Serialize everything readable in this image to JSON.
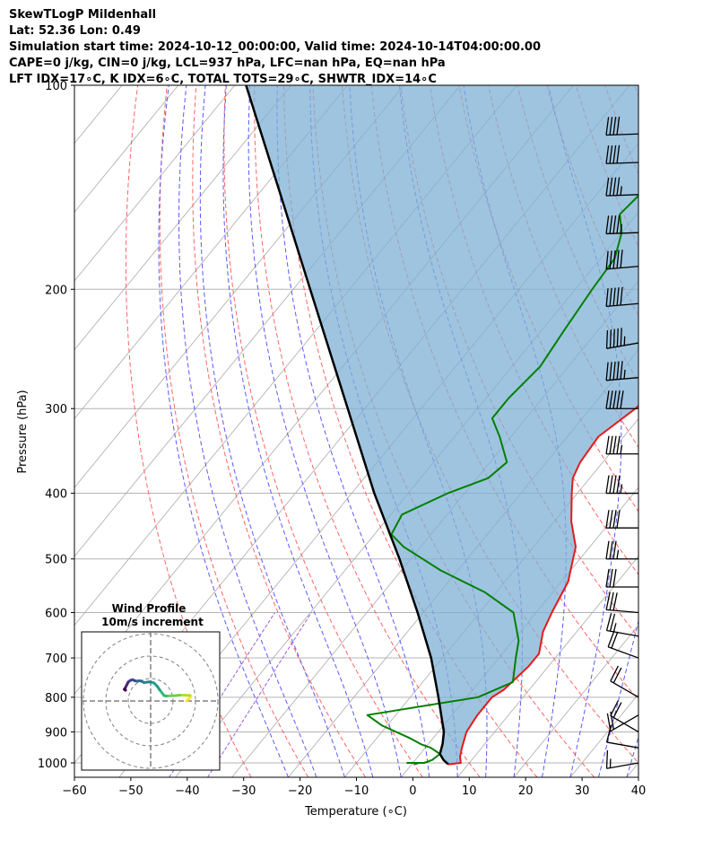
{
  "header": {
    "line1": "SkewTLogP Mildenhall",
    "line2": "Lat: 52.36   Lon: 0.49",
    "line3": "Simulation start time: 2024-10-12_00:00:00, Valid time: 2024-10-14T04:00:00.00",
    "line4": "CAPE=0 j/kg, CIN=0 j/kg, LCL=937 hPa, LFC=nan hPa, EQ=nan hPa",
    "line5": "LFT IDX=17∘C, K IDX=6∘C, TOTAL TOTS=29∘C, SHWTR_IDX=14∘C"
  },
  "chart_data": {
    "type": "skewt",
    "xlabel": "Temperature (∘C)",
    "ylabel": "Pressure (hPa)",
    "xlim": [
      -60,
      40
    ],
    "plim": [
      1050,
      100
    ],
    "x_ticks": [
      -60,
      -50,
      -40,
      -30,
      -20,
      -10,
      0,
      10,
      20,
      30,
      40
    ],
    "x_tick_labels": [
      "−60",
      "−50",
      "−40",
      "−30",
      "−20",
      "−10",
      "0",
      "10",
      "20",
      "30",
      "40"
    ],
    "p_ticks": [
      100,
      200,
      300,
      400,
      500,
      600,
      700,
      800,
      900,
      1000
    ],
    "p_tick_labels": [
      "100",
      "200",
      "300",
      "400",
      "500",
      "600",
      "700",
      "800",
      "900",
      "1000"
    ],
    "series": [
      {
        "name": "temperature",
        "color": "#e31a1c",
        "points": [
          [
            1005,
            6.5
          ],
          [
            1000,
            8.5
          ],
          [
            980,
            7.5
          ],
          [
            950,
            6.5
          ],
          [
            900,
            5
          ],
          [
            850,
            4.5
          ],
          [
            800,
            4.5
          ],
          [
            780,
            5.5
          ],
          [
            720,
            6.5
          ],
          [
            690,
            6.5
          ],
          [
            640,
            4
          ],
          [
            600,
            2.8
          ],
          [
            540,
            1.2
          ],
          [
            480,
            -2.5
          ],
          [
            440,
            -7
          ],
          [
            400,
            -11
          ],
          [
            380,
            -13
          ],
          [
            360,
            -14
          ],
          [
            330,
            -14.5
          ],
          [
            300,
            -12
          ],
          [
            265,
            -10
          ],
          [
            230,
            -10
          ],
          [
            200,
            -9
          ],
          [
            175,
            -8
          ],
          [
            150,
            -6
          ],
          [
            130,
            -5
          ],
          [
            115,
            -3.5
          ],
          [
            100,
            -3.5
          ]
        ]
      },
      {
        "name": "dewpoint",
        "color": "#008000",
        "points": [
          [
            1005,
            0.5
          ],
          [
            1000,
            1
          ],
          [
            1000,
            -1
          ],
          [
            1000,
            2
          ],
          [
            990,
            3
          ],
          [
            970,
            3.5
          ],
          [
            950,
            1
          ],
          [
            940,
            -1
          ],
          [
            920,
            -4
          ],
          [
            880,
            -11
          ],
          [
            850,
            -15
          ],
          [
            800,
            2
          ],
          [
            760,
            6
          ],
          [
            700,
            3
          ],
          [
            660,
            1
          ],
          [
            600,
            -4
          ],
          [
            560,
            -12
          ],
          [
            520,
            -23
          ],
          [
            480,
            -33
          ],
          [
            460,
            -37
          ],
          [
            430,
            -38
          ],
          [
            400,
            -33
          ],
          [
            380,
            -28
          ],
          [
            360,
            -27
          ],
          [
            330,
            -32
          ],
          [
            310,
            -36
          ],
          [
            290,
            -36
          ],
          [
            260,
            -35
          ],
          [
            230,
            -36
          ],
          [
            200,
            -37
          ],
          [
            180,
            -37.5
          ],
          [
            165,
            -40
          ],
          [
            155,
            -43
          ],
          [
            140,
            -42
          ],
          [
            125,
            -36
          ],
          [
            110,
            -30
          ],
          [
            100,
            -26
          ]
        ]
      },
      {
        "name": "parcel",
        "color": "#000000",
        "points": [
          [
            1005,
            6.5
          ],
          [
            990,
            5
          ],
          [
            970,
            3.5
          ],
          [
            937,
            2.5
          ],
          [
            900,
            1
          ],
          [
            800,
            -5
          ],
          [
            700,
            -12
          ],
          [
            600,
            -21
          ],
          [
            500,
            -32
          ],
          [
            400,
            -46
          ],
          [
            300,
            -63
          ],
          [
            200,
            -87
          ],
          [
            150,
            -104
          ],
          [
            100,
            -128
          ]
        ]
      }
    ],
    "cape_cin_fill": {
      "color": "#7fb0d4",
      "between": [
        "temperature",
        "parcel"
      ]
    },
    "background": {
      "isotherm_color": "#aaaaaa",
      "dry_adiabat_color": "#ff6464",
      "moist_adiabat_color": "#5a5aff",
      "mixing_ratio_color": "#9f5fd0",
      "isobar_color": "#b4b4b4"
    },
    "wind_barbs": [
      {
        "p": 1000,
        "speed_kt": 15,
        "dir": 280
      },
      {
        "p": 950,
        "speed_kt": 10,
        "dir": 260
      },
      {
        "p": 900,
        "speed_kt": 20,
        "dir": 240
      },
      {
        "p": 850,
        "speed_kt": 20,
        "dir": 300
      },
      {
        "p": 800,
        "speed_kt": 20,
        "dir": 240
      },
      {
        "p": 700,
        "speed_kt": 20,
        "dir": 250
      },
      {
        "p": 650,
        "speed_kt": 25,
        "dir": 260
      },
      {
        "p": 600,
        "speed_kt": 30,
        "dir": 265
      },
      {
        "p": 550,
        "speed_kt": 30,
        "dir": 270
      },
      {
        "p": 500,
        "speed_kt": 35,
        "dir": 270
      },
      {
        "p": 450,
        "speed_kt": 40,
        "dir": 270
      },
      {
        "p": 400,
        "speed_kt": 45,
        "dir": 270
      },
      {
        "p": 350,
        "speed_kt": 45,
        "dir": 270
      },
      {
        "p": 300,
        "speed_kt": 50,
        "dir": 270
      },
      {
        "p": 270,
        "speed_kt": 55,
        "dir": 275
      },
      {
        "p": 240,
        "speed_kt": 55,
        "dir": 280
      },
      {
        "p": 210,
        "speed_kt": 50,
        "dir": 275
      },
      {
        "p": 185,
        "speed_kt": 50,
        "dir": 275
      },
      {
        "p": 165,
        "speed_kt": 45,
        "dir": 272
      },
      {
        "p": 145,
        "speed_kt": 45,
        "dir": 272
      },
      {
        "p": 130,
        "speed_kt": 40,
        "dir": 272
      },
      {
        "p": 118,
        "speed_kt": 40,
        "dir": 272
      }
    ],
    "wind_profile": {
      "title": "Wind Profile",
      "subtitle": "10m/s increment",
      "rings": [
        10,
        20,
        30
      ],
      "hodograph": [
        [
          16,
          0
        ],
        [
          17,
          1
        ],
        [
          18,
          2
        ],
        [
          17.5,
          2.5
        ],
        [
          16,
          2.5
        ],
        [
          15,
          2.6
        ],
        [
          13,
          2.6
        ],
        [
          11,
          2.4
        ],
        [
          9,
          2.3
        ],
        [
          7,
          2.2
        ],
        [
          6,
          2.4
        ],
        [
          5.5,
          3
        ],
        [
          4,
          5
        ],
        [
          3,
          6.5
        ],
        [
          1.5,
          8
        ],
        [
          0,
          8.5
        ],
        [
          -1,
          8.5
        ],
        [
          -3,
          8.2
        ],
        [
          -4,
          8.8
        ],
        [
          -5,
          9
        ],
        [
          -6,
          8.8
        ],
        [
          -7,
          9
        ],
        [
          -8,
          9.5
        ],
        [
          -9,
          9.2
        ],
        [
          -10,
          8.5
        ],
        [
          -10.5,
          7.5
        ],
        [
          -11,
          6.5
        ],
        [
          -11.5,
          5.5
        ],
        [
          -11.2,
          4.8
        ],
        [
          -11.8,
          5.2
        ]
      ],
      "colors": [
        "#fde725",
        "#b5de2b",
        "#6ece58",
        "#35b779",
        "#1f9e89",
        "#26828e",
        "#31688e",
        "#3e4989",
        "#482878",
        "#440154"
      ]
    }
  }
}
